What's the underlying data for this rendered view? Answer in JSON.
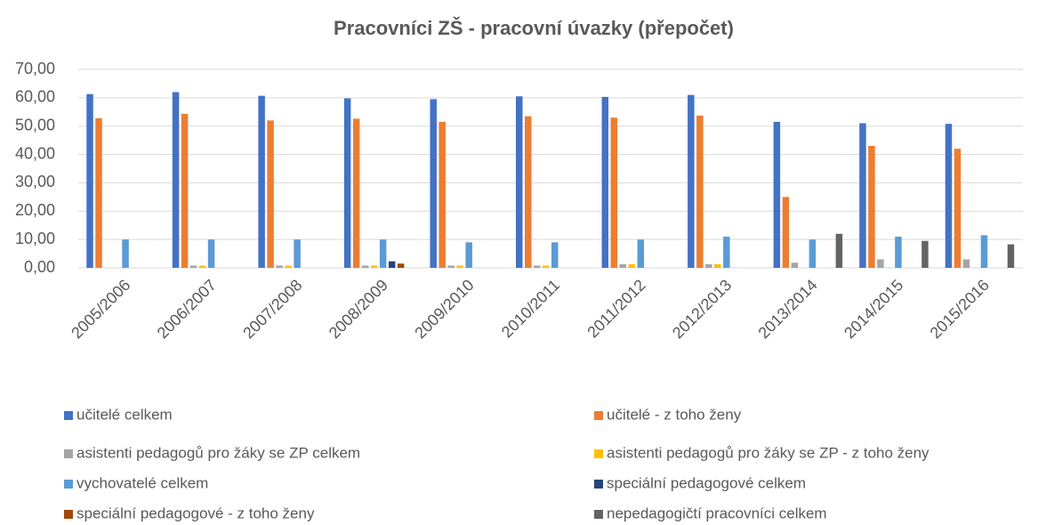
{
  "chart_data": {
    "type": "bar",
    "title": "Pracovníci ZŠ - pracovní úvazky (přepočet)",
    "categories": [
      "2005/2006",
      "2006/2007",
      "2007/2008",
      "2008/2009",
      "2009/2010",
      "2010/2011",
      "2011/2012",
      "2012/2013",
      "2013/2014",
      "2014/2015",
      "2015/2016"
    ],
    "series": [
      {
        "name": "učitelé celkem",
        "color": "#4472c4",
        "values": [
          61.3,
          62,
          60.7,
          59.8,
          59.5,
          60.5,
          60.3,
          61,
          51.5,
          51,
          50.8
        ]
      },
      {
        "name": "učitelé - z toho ženy",
        "color": "#ed7d31",
        "values": [
          52.8,
          54.3,
          52,
          52.6,
          51.5,
          53.5,
          53,
          53.7,
          25,
          43,
          42
        ]
      },
      {
        "name": "asistenti pedagogů pro žáky se ZP celkem",
        "color": "#a5a5a5",
        "values": [
          0,
          0.8,
          0.8,
          0.8,
          0.8,
          0.8,
          1.3,
          1.3,
          1.8,
          3,
          3
        ]
      },
      {
        "name": "asistenti pedagogů pro žáky se ZP - z toho ženy",
        "color": "#ffc000",
        "values": [
          0,
          0.8,
          0.8,
          0.8,
          0.8,
          0.8,
          1.3,
          1.3,
          0,
          0,
          0
        ]
      },
      {
        "name": "vychovatelé celkem",
        "color": "#5b9bd5",
        "values": [
          10,
          10,
          10,
          10,
          9,
          9,
          10,
          11,
          10,
          11,
          11.5
        ]
      },
      {
        "name": "speciální pedagogové celkem",
        "color": "#264478",
        "values": [
          0,
          0,
          0,
          2.3,
          0,
          0,
          0,
          0,
          0,
          0,
          0
        ]
      },
      {
        "name": "speciální pedagogové - z toho ženy",
        "color": "#9e480e",
        "values": [
          0,
          0,
          0,
          1.5,
          0,
          0,
          0,
          0,
          0,
          0,
          0
        ]
      },
      {
        "name": "nepedagogičtí pracovníci celkem",
        "color": "#636363",
        "values": [
          0,
          0,
          0,
          0,
          0,
          0,
          0,
          0,
          12,
          9.5,
          8.3
        ]
      }
    ],
    "ylim": [
      0,
      70
    ],
    "yticks": [
      {
        "value": 0,
        "label": "0,00"
      },
      {
        "value": 10,
        "label": "10,00"
      },
      {
        "value": 20,
        "label": "20,00"
      },
      {
        "value": 30,
        "label": "30,00"
      },
      {
        "value": 40,
        "label": "40,00"
      },
      {
        "value": 50,
        "label": "50,00"
      },
      {
        "value": 60,
        "label": "60,00"
      },
      {
        "value": 70,
        "label": "70,00"
      }
    ],
    "grid": true
  }
}
